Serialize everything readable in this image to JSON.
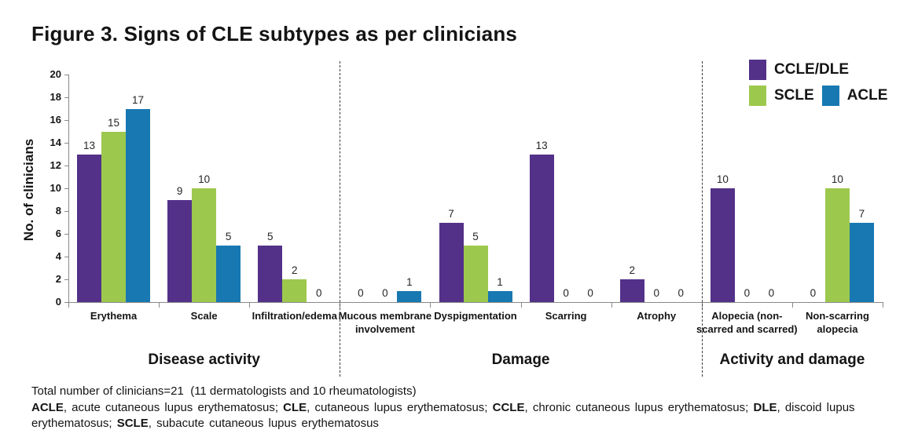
{
  "title": "Figure 3. Signs of CLE subtypes as per clinicians",
  "chart_data": {
    "type": "bar",
    "title": "Figure 3. Signs of CLE subtypes as per clinicians",
    "ylabel": "No. of clinicians",
    "xlabel": "",
    "ylim": [
      0,
      20
    ],
    "ytick_step": 2,
    "grid": false,
    "legend_position": "top-right",
    "bar_value_labels": true,
    "categories": [
      "Erythema",
      "Scale",
      "Infiltration/edema",
      "Mucous membrane involvement",
      "Dyspigmentation",
      "Scarring",
      "Atrophy",
      "Alopecia (non-scarred and scarred)",
      "Non-scarring alopecia"
    ],
    "series": [
      {
        "name": "CCLE/DLE",
        "color": "#533189",
        "values": [
          13,
          9,
          5,
          0,
          7,
          13,
          2,
          10,
          0
        ]
      },
      {
        "name": "SCLE",
        "color": "#9DC84E",
        "values": [
          15,
          10,
          2,
          0,
          5,
          0,
          0,
          0,
          10
        ]
      },
      {
        "name": "ACLE",
        "color": "#1878B2",
        "values": [
          17,
          5,
          0,
          1,
          1,
          0,
          0,
          0,
          7
        ]
      }
    ],
    "sections": [
      {
        "label": "Disease activity",
        "from": 0,
        "to": 2
      },
      {
        "label": "Damage",
        "from": 3,
        "to": 6
      },
      {
        "label": "Activity and damage",
        "from": 7,
        "to": 8
      }
    ]
  },
  "footnotes": {
    "line1": "Total number of clinicians=21  (11 dermatologists and 10 rheumatologists)",
    "abbreviations": [
      {
        "text": "ACLE",
        "bold": true
      },
      {
        "text": ", acute cutaneous lupus erythematosus; ",
        "bold": false
      },
      {
        "text": "CLE",
        "bold": true
      },
      {
        "text": ", cutaneous lupus erythematosus; ",
        "bold": false
      },
      {
        "text": "CCLE",
        "bold": true
      },
      {
        "text": ", chronic cutaneous lupus erythematosus; ",
        "bold": false
      },
      {
        "text": "DLE",
        "bold": true
      },
      {
        "text": ", discoid lupus erythematosus; ",
        "bold": false
      },
      {
        "text": "SCLE",
        "bold": true
      },
      {
        "text": ", subacute cutaneous lupus erythematosus",
        "bold": false
      }
    ]
  }
}
